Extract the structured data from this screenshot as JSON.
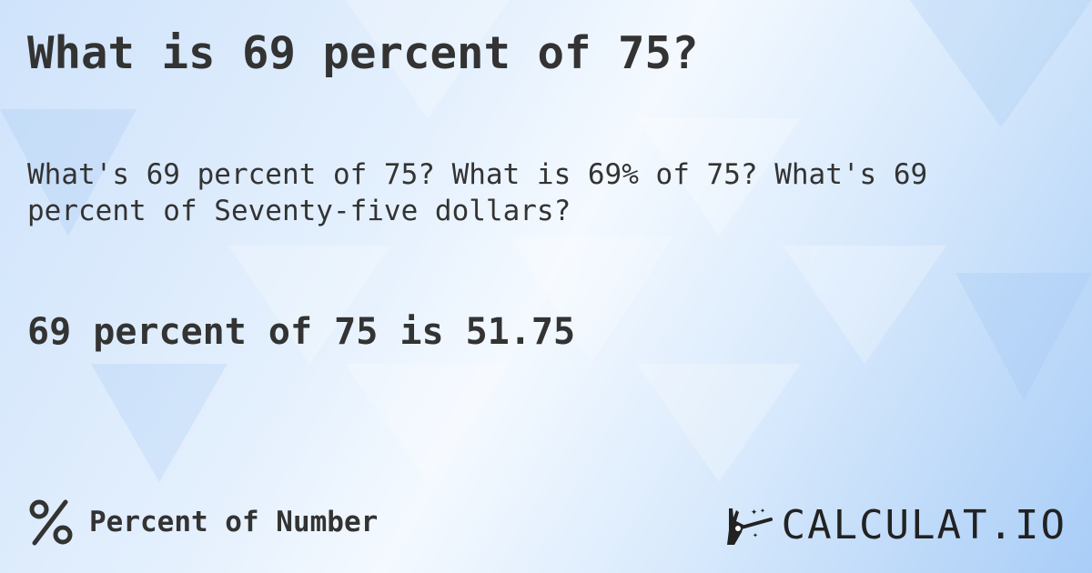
{
  "title": "What is 69 percent of 75?",
  "subtitle": "What's 69 percent of 75? What is 69% of 75? What's 69 percent of Seventy-five dollars?",
  "result": "69 percent of 75 is 51.75",
  "footer": {
    "icon": "percent-icon",
    "label": "Percent of Number"
  },
  "logo": {
    "icon": "magic-hand-wand-icon",
    "text": "CALCULAT.IO"
  },
  "colors": {
    "text": "#333333",
    "background": "#d6e8fc"
  }
}
